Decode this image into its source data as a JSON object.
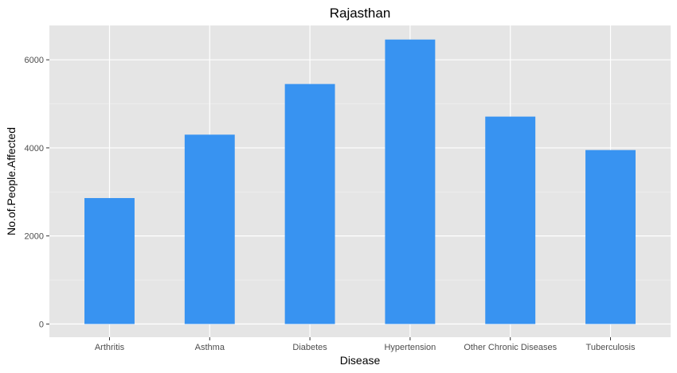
{
  "chart_data": {
    "type": "bar",
    "title": "Rajasthan",
    "xlabel": "Disease",
    "ylabel": "No.of.People.Affected",
    "categories": [
      "Arthritis",
      "Asthma",
      "Diabetes",
      "Hypertension",
      "Other Chronic Diseases",
      "Tuberculosis"
    ],
    "values": [
      2860,
      4300,
      5450,
      6460,
      4710,
      3950
    ],
    "ylim": [
      -300,
      6780
    ],
    "yticks": [
      0,
      2000,
      4000,
      6000
    ],
    "ytick_labels": [
      "0",
      "2000",
      "4000",
      "6000"
    ],
    "grid": true,
    "legend": "none",
    "colors": {
      "bar": "#3893F1",
      "panel_background": "#E5E5E5",
      "grid_major": "#FFFFFF",
      "grid_minor": "#F0F0F0",
      "text": "#000000",
      "tick_text": "#4D4D4D",
      "tick_mark": "#333333"
    }
  }
}
